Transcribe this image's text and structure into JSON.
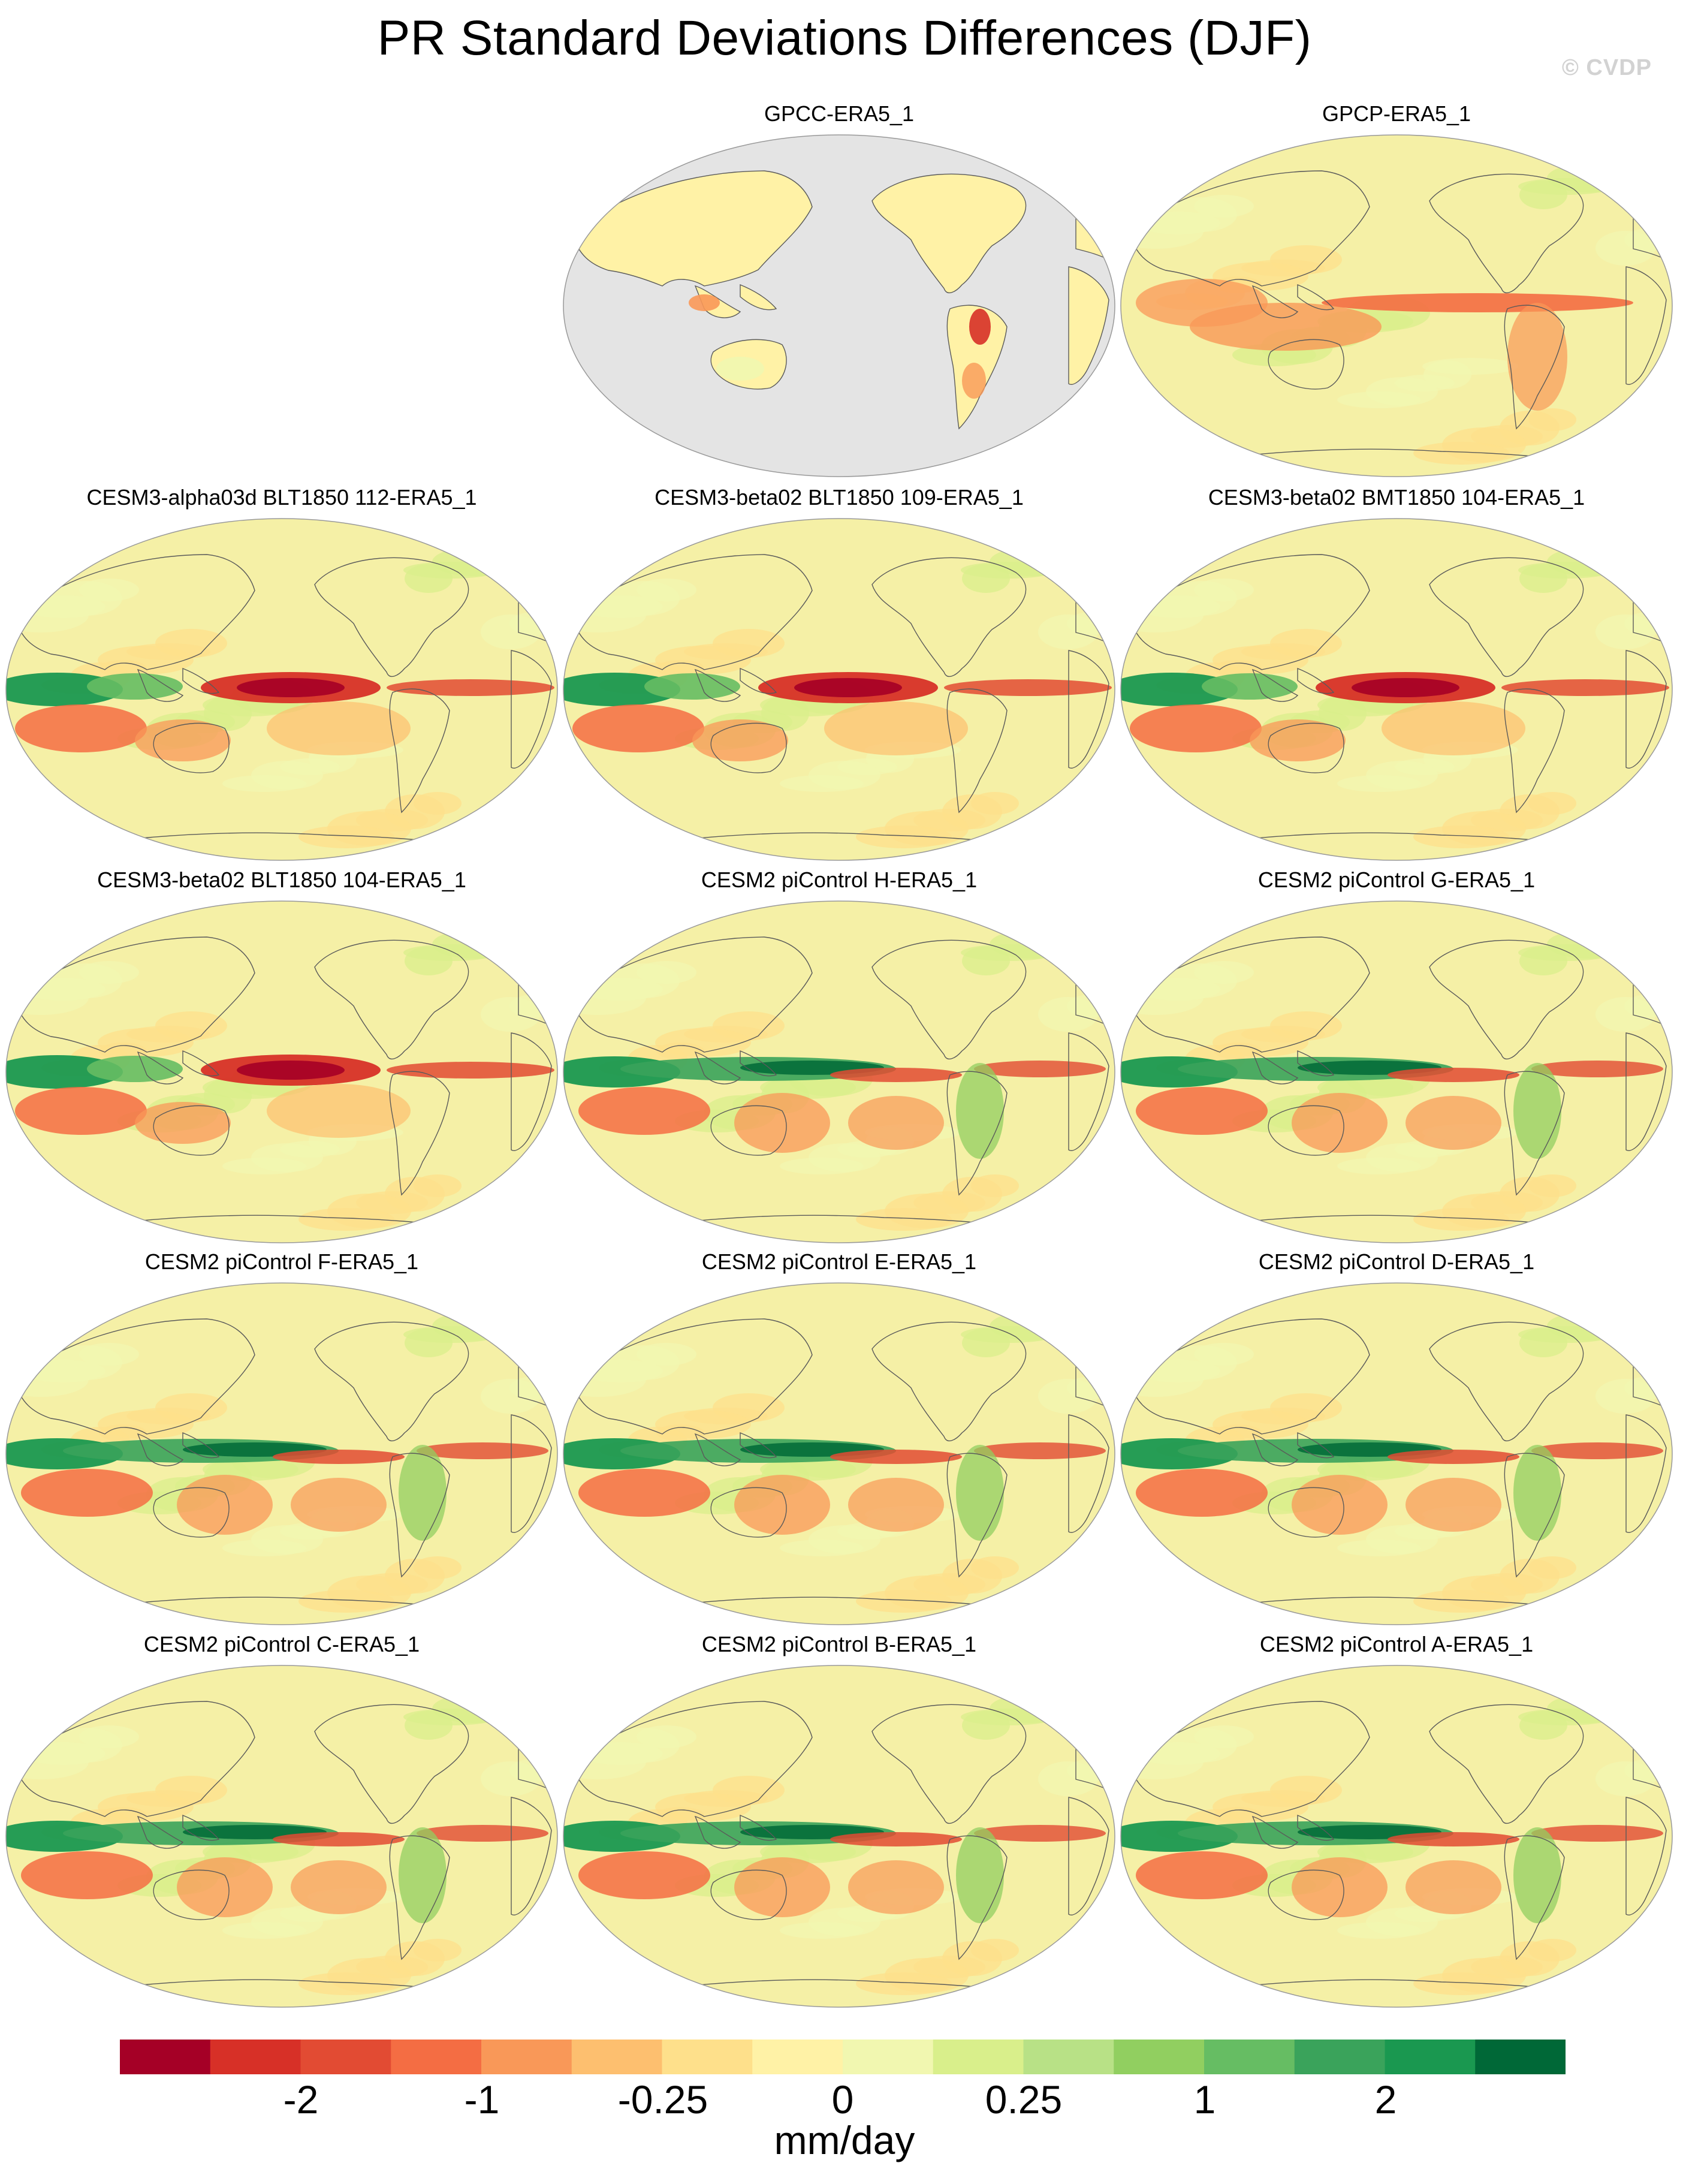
{
  "title": "PR Standard Deviations Differences (DJF)",
  "watermark": "© CVDP",
  "panels": [
    {
      "title": "GPCC-ERA5_1",
      "coverage": "land-only",
      "tropical_band": "weak-red"
    },
    {
      "title": "GPCP-ERA5_1",
      "coverage": "global",
      "tropical_band": "red"
    },
    {
      "title": "CESM3-alpha03d BLT1850 112-ERA5_1",
      "coverage": "global",
      "tropical_band": "green-west-red-east"
    },
    {
      "title": "CESM3-beta02 BLT1850 109-ERA5_1",
      "coverage": "global",
      "tropical_band": "green-west-red-east"
    },
    {
      "title": "CESM3-beta02 BMT1850 104-ERA5_1",
      "coverage": "global",
      "tropical_band": "green-west-red-east"
    },
    {
      "title": "CESM3-beta02 BLT1850 104-ERA5_1",
      "coverage": "global",
      "tropical_band": "green-west-red-east"
    },
    {
      "title": "CESM2 piControl H-ERA5_1",
      "coverage": "global",
      "tropical_band": "green-dominant"
    },
    {
      "title": "CESM2 piControl G-ERA5_1",
      "coverage": "global",
      "tropical_band": "green-dominant"
    },
    {
      "title": "CESM2 piControl F-ERA5_1",
      "coverage": "global",
      "tropical_band": "green-dominant"
    },
    {
      "title": "CESM2 piControl E-ERA5_1",
      "coverage": "global",
      "tropical_band": "green-dominant"
    },
    {
      "title": "CESM2 piControl D-ERA5_1",
      "coverage": "global",
      "tropical_band": "green-dominant"
    },
    {
      "title": "CESM2 piControl C-ERA5_1",
      "coverage": "global",
      "tropical_band": "green-dominant"
    },
    {
      "title": "CESM2 piControl B-ERA5_1",
      "coverage": "global",
      "tropical_band": "green-dominant"
    },
    {
      "title": "CESM2 piControl A-ERA5_1",
      "coverage": "global",
      "tropical_band": "green-dominant"
    }
  ],
  "colorbar": {
    "colors": [
      "#a50026",
      "#d73027",
      "#e24b33",
      "#f46d43",
      "#f99858",
      "#fdbf6f",
      "#fee08b",
      "#fff2a6",
      "#f1f7b0",
      "#d9ef8b",
      "#b8e186",
      "#91cf60",
      "#66bd63",
      "#3aa35b",
      "#1a9850",
      "#006837"
    ],
    "tick_labels": [
      "-2",
      "-1",
      "-0.25",
      "0",
      "0.25",
      "1",
      "2"
    ],
    "units": "mm/day"
  },
  "map_colors": {
    "ocean_mask": "#e4e4e4",
    "background": "#f5f0a6",
    "coastline": "#5a5a5a"
  }
}
